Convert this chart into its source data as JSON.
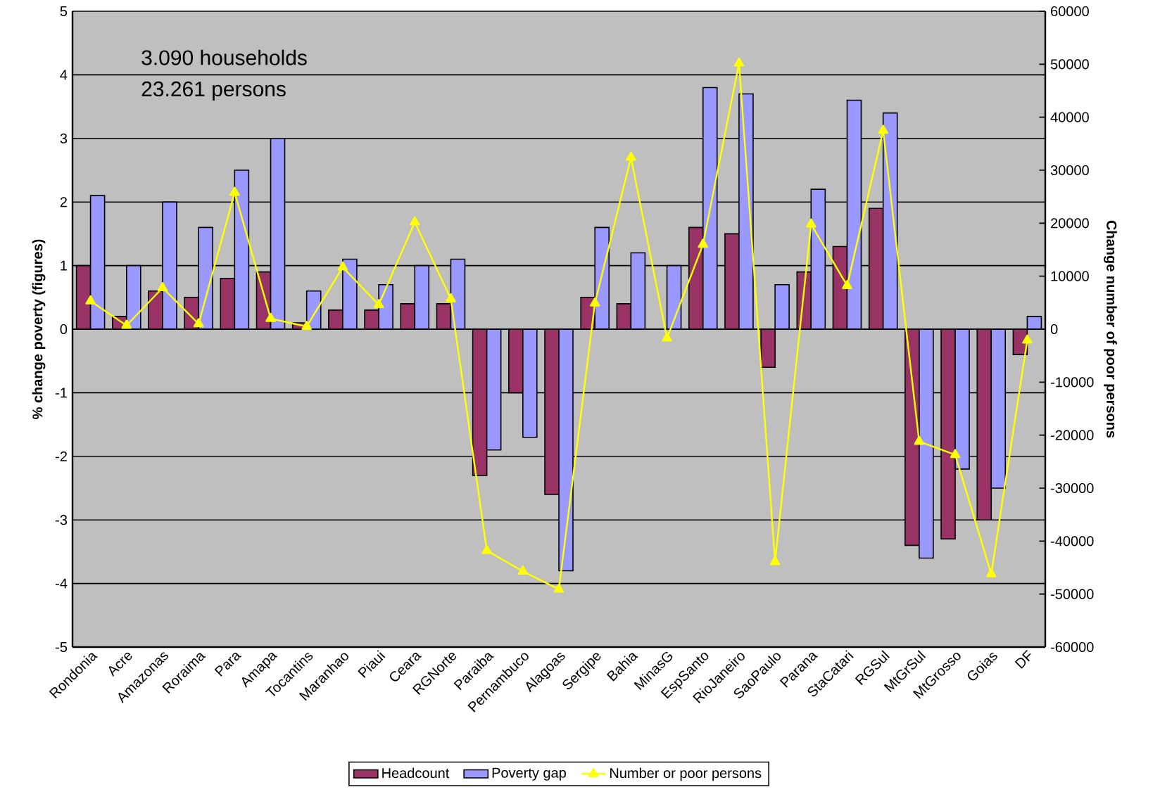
{
  "chart_data": {
    "type": "bar",
    "xlabel": null,
    "ylabel": "% change poverty (figures)",
    "y2label": "Change number of poor persons",
    "annotations": [
      "3.090 households",
      "23.261 persons"
    ],
    "categories": [
      "Rondonia",
      "Acre",
      "Amazonas",
      "Roraima",
      "Para",
      "Amapa",
      "Tocantins",
      "Maranhao",
      "Piaui",
      "Ceara",
      "RGNorte",
      "Paraiba",
      "Pernambuco",
      "Alagoas",
      "Sergipe",
      "Bahia",
      "MinasG",
      "EspSanto",
      "RioJaneiro",
      "SaoPaulo",
      "Parana",
      "StaCatari",
      "RGSul",
      "MtGrSul",
      "MtGrosso",
      "Goias",
      "DF"
    ],
    "series": [
      {
        "name": "Headcount",
        "type": "bar",
        "color": "#993366",
        "values": [
          1.0,
          0.2,
          0.6,
          0.5,
          0.8,
          0.9,
          0.1,
          0.3,
          0.3,
          0.4,
          0.4,
          -2.3,
          -1.0,
          -2.6,
          0.5,
          0.4,
          null,
          1.6,
          1.5,
          -0.6,
          0.9,
          1.3,
          1.9,
          -3.4,
          -3.3,
          -3.0,
          -0.4
        ]
      },
      {
        "name": "Poverty gap",
        "type": "bar",
        "color": "#9999ff",
        "values": [
          2.1,
          1.0,
          2.0,
          1.6,
          2.5,
          3.0,
          0.6,
          1.1,
          0.7,
          1.0,
          1.1,
          -1.9,
          -1.7,
          -3.8,
          1.6,
          1.2,
          1.0,
          3.8,
          3.7,
          0.7,
          2.2,
          3.6,
          3.4,
          -3.6,
          -2.2,
          -2.5,
          0.2
        ]
      },
      {
        "name": "Number or poor persons",
        "type": "line",
        "axis": "y2",
        "color": "#ffff00",
        "values": [
          5300,
          700,
          7800,
          1000,
          25800,
          2000,
          500,
          11700,
          4600,
          20200,
          5700,
          -41800,
          -45700,
          -49100,
          4900,
          32400,
          -1700,
          16000,
          50200,
          -43900,
          19800,
          8200,
          37500,
          -21200,
          -23700,
          -46200,
          -2100
        ]
      }
    ],
    "ylim": [
      -5,
      5
    ],
    "yticks": [
      -5,
      -4,
      -3,
      -2,
      -1,
      0,
      1,
      2,
      3,
      4,
      5
    ],
    "y2lim": [
      -60000,
      60000
    ],
    "y2ticks": [
      -60000,
      -50000,
      -40000,
      -30000,
      -20000,
      -10000,
      0,
      10000,
      20000,
      30000,
      40000,
      50000,
      60000
    ],
    "grid": "y",
    "legend": "bottom",
    "marker": "triangle",
    "line_style": "solid"
  }
}
